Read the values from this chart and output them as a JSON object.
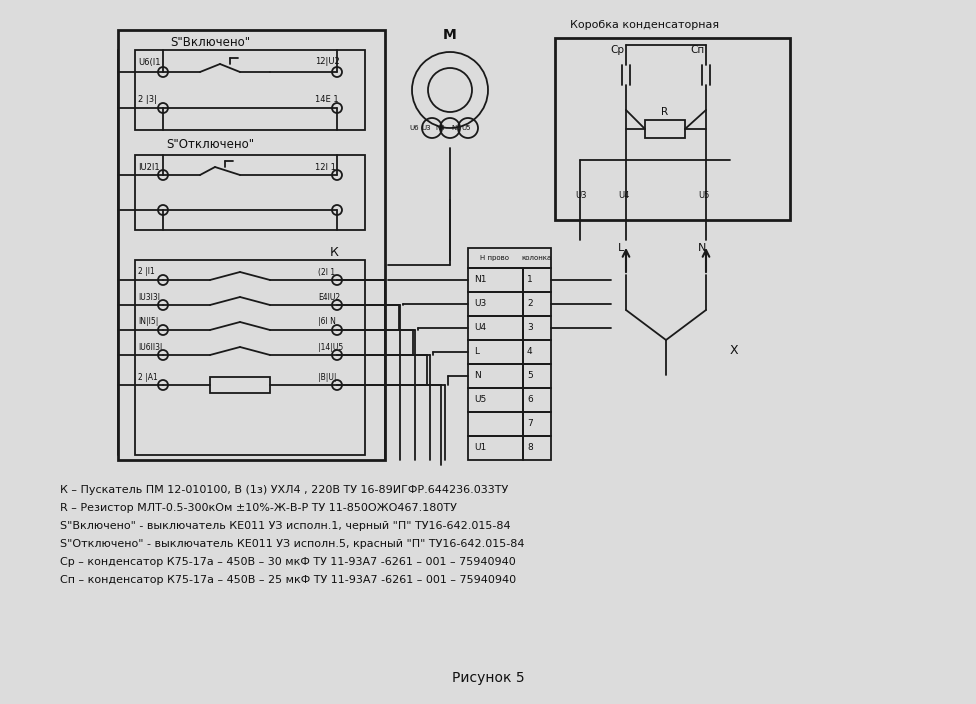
{
  "bg_color": "#e8e8e8",
  "title": "Рисунок 5",
  "legend_lines": [
    "К – Пускатель ПМ 12-010100, В (1з) УХЛ4 , 220В ТУ 16-89ИГФР.644236.033ТУ",
    "R – Резистор МЛТ-0.5-300кОм ±10%-Ж-В-Р ТУ 11-850ОЖО467.180ТУ",
    "S\"Включено\" - выключатель КЕ011 УЗ исполн.1, черный \"П\" ТУ16-642.015-84",
    "S\"Отключено\" - выключатель КЕ011 УЗ исполн.5, красный \"П\" ТУ16-642.015-84",
    "Ср – конденсатор К75-17а – 450В – 30 мкФ ТУ 11-93А7 -6261 – 001 – 75940940",
    "Сп – конденсатор К75-17а – 450В – 25 мкФ ТУ 11-93А7 -6261 – 001 – 75940940"
  ],
  "terminal_rows": [
    [
      "N1",
      "1"
    ],
    [
      "U3",
      "2"
    ],
    [
      "U4",
      "3"
    ],
    [
      "L",
      "4"
    ],
    [
      "N",
      "5"
    ],
    [
      "U5",
      "6"
    ],
    [
      "",
      "7"
    ],
    [
      "U1",
      "8"
    ]
  ]
}
